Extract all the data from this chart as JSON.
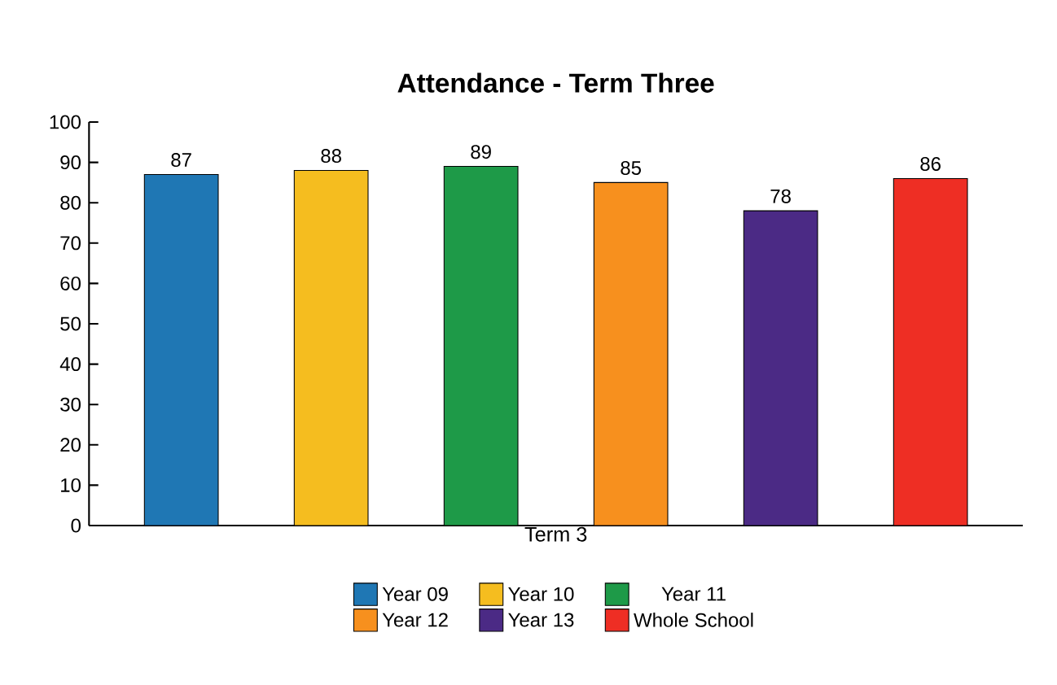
{
  "chart_data": {
    "type": "bar",
    "title": "Attendance - Term Three",
    "xlabel": "Term 3",
    "categories": [
      null
    ],
    "series": [
      {
        "name": "Year 09",
        "color": "#1f77b4",
        "values": [
          87
        ]
      },
      {
        "name": "Year 10",
        "color": "#f5bd1f",
        "values": [
          88
        ]
      },
      {
        "name": "Year 11",
        "color": "#1e9a48",
        "values": [
          89
        ]
      },
      {
        "name": "Year 12",
        "color": "#f7901e",
        "values": [
          85
        ]
      },
      {
        "name": "Year 13",
        "color": "#4b2a85",
        "values": [
          78
        ]
      },
      {
        "name": "Whole School",
        "color": "#ee2e24",
        "values": [
          86
        ]
      }
    ],
    "ylim": [
      0,
      100
    ],
    "yticks": [
      0,
      10,
      20,
      30,
      40,
      50,
      60,
      70,
      80,
      90,
      100
    ],
    "data_labels": true,
    "legend": "bottom",
    "grid": false
  }
}
